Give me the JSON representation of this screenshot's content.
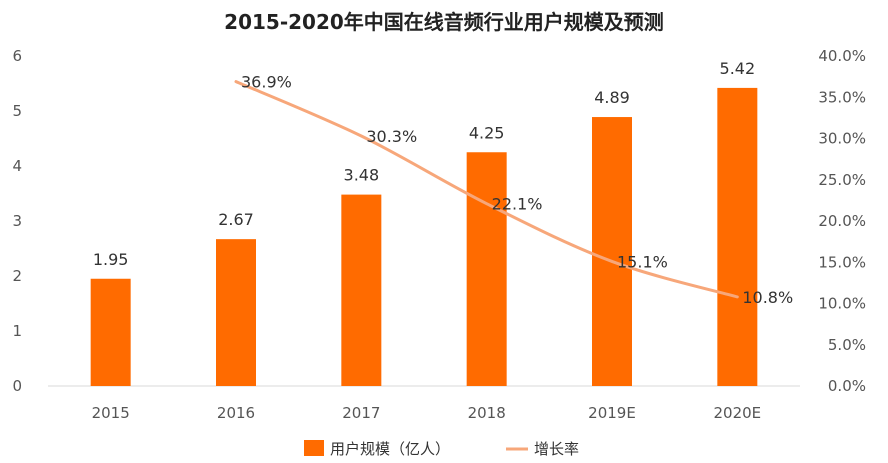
{
  "chart_data": {
    "type": "bar",
    "title": "2015-2020年中国在线音频行业用户规模及预测",
    "categories": [
      "2015",
      "2016",
      "2017",
      "2018",
      "2019E",
      "2020E"
    ],
    "series": [
      {
        "name": "用户规模（亿人）",
        "type": "bar",
        "axis": "left",
        "values": [
          1.95,
          2.67,
          3.48,
          4.25,
          4.89,
          5.42
        ],
        "labels": [
          "1.95",
          "2.67",
          "3.48",
          "4.25",
          "4.89",
          "5.42"
        ],
        "color": "#FF6B00"
      },
      {
        "name": "增长率",
        "type": "line",
        "axis": "right",
        "values": [
          null,
          36.9,
          30.3,
          22.1,
          15.1,
          10.8
        ],
        "labels": [
          "",
          "36.9%",
          "30.3%",
          "22.1%",
          "15.1%",
          "10.8%"
        ],
        "color": "#F7A77A"
      }
    ],
    "y_left": {
      "ylim": [
        0,
        6
      ],
      "ticks": [
        "0",
        "1",
        "2",
        "3",
        "4",
        "5",
        "6"
      ]
    },
    "y_right": {
      "ylim": [
        0,
        40
      ],
      "ticks": [
        "0.0%",
        "5.0%",
        "10.0%",
        "15.0%",
        "20.0%",
        "25.0%",
        "30.0%",
        "35.0%",
        "40.0%"
      ]
    },
    "grid": false,
    "legend_position": "bottom"
  }
}
